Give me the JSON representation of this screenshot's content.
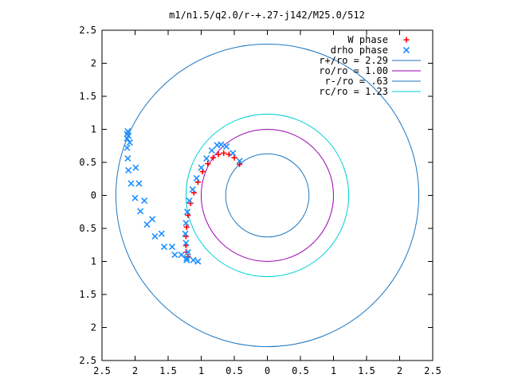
{
  "chart_data": {
    "type": "scatter",
    "title": "m1/n1.5/q2.0/r-+.27-j142/M25.0/512",
    "xlim": [
      -2.5,
      2.5
    ],
    "ylim": [
      -2.5,
      2.5
    ],
    "x_ticks": [
      -2.5,
      -2,
      -1.5,
      -1,
      -0.5,
      0,
      0.5,
      1,
      1.5,
      2,
      2.5
    ],
    "y_ticks": [
      -2.5,
      -2,
      -1.5,
      -1,
      -0.5,
      0,
      0.5,
      1,
      1.5,
      2,
      2.5
    ],
    "x_tick_labels": [
      "2.5",
      "2",
      "1.5",
      "1",
      "0.5",
      "0",
      "0.5",
      "1",
      "1.5",
      "2",
      "2.5"
    ],
    "y_tick_labels": [
      "2.5",
      "2",
      "1.5",
      "1",
      "0.5",
      "0",
      "0.5",
      "1",
      "1.5",
      "2",
      "2.5"
    ],
    "legend_position": "top-right",
    "circles": [
      {
        "name": "r+/ro = 2.29",
        "radius": 2.29,
        "color": "#1f77c0"
      },
      {
        "name": "ro/ro = 1.00",
        "radius": 1.0,
        "color": "#9a00b0"
      },
      {
        "name": "r-/ro = .63",
        "radius": 0.63,
        "color": "#1f77c0"
      },
      {
        "name": "rc/ro = 1.23",
        "radius": 1.23,
        "color": "#00d0d8"
      }
    ],
    "series": [
      {
        "name": "W phase",
        "marker": "+",
        "color": "#ff0000",
        "x": [
          -0.42,
          -0.5,
          -0.58,
          -0.66,
          -0.74,
          -0.82,
          -0.9,
          -0.98,
          -1.05,
          -1.11,
          -1.16,
          -1.2,
          -1.22,
          -1.23,
          -1.23,
          -1.22,
          -1.2
        ],
        "y": [
          0.47,
          0.57,
          0.62,
          0.64,
          0.62,
          0.57,
          0.48,
          0.36,
          0.2,
          0.04,
          -0.12,
          -0.3,
          -0.48,
          -0.62,
          -0.76,
          -0.86,
          -0.93
        ]
      },
      {
        "name": "drho phase",
        "marker": "x",
        "color": "#1e90ff",
        "x": [
          -0.42,
          -0.52,
          -0.62,
          -0.7,
          -0.76,
          -0.84,
          -0.92,
          -1.0,
          -1.07,
          -1.13,
          -1.18,
          -1.21,
          -1.23,
          -1.24,
          -1.23,
          -1.2,
          -1.12,
          -1.05,
          -1.22,
          -1.4,
          -1.56,
          -1.7,
          -1.82,
          -1.92,
          -2.0,
          -2.06,
          -2.1,
          -2.11,
          -2.12,
          -2.12,
          -2.12,
          -2.11,
          -2.1,
          -2.08,
          -1.99,
          -1.94,
          -1.86,
          -1.74,
          -1.6,
          -1.44,
          -1.3,
          -1.22
        ],
        "y": [
          0.52,
          0.64,
          0.74,
          0.77,
          0.76,
          0.68,
          0.56,
          0.42,
          0.26,
          0.09,
          -0.08,
          -0.25,
          -0.42,
          -0.58,
          -0.72,
          -0.86,
          -0.98,
          -1.0,
          -0.98,
          -0.9,
          -0.78,
          -0.62,
          -0.44,
          -0.24,
          -0.04,
          0.18,
          0.38,
          0.56,
          0.72,
          0.86,
          0.93,
          0.97,
          0.9,
          0.8,
          0.42,
          0.18,
          -0.08,
          -0.36,
          -0.58,
          -0.78,
          -0.9,
          -0.95
        ]
      }
    ]
  }
}
